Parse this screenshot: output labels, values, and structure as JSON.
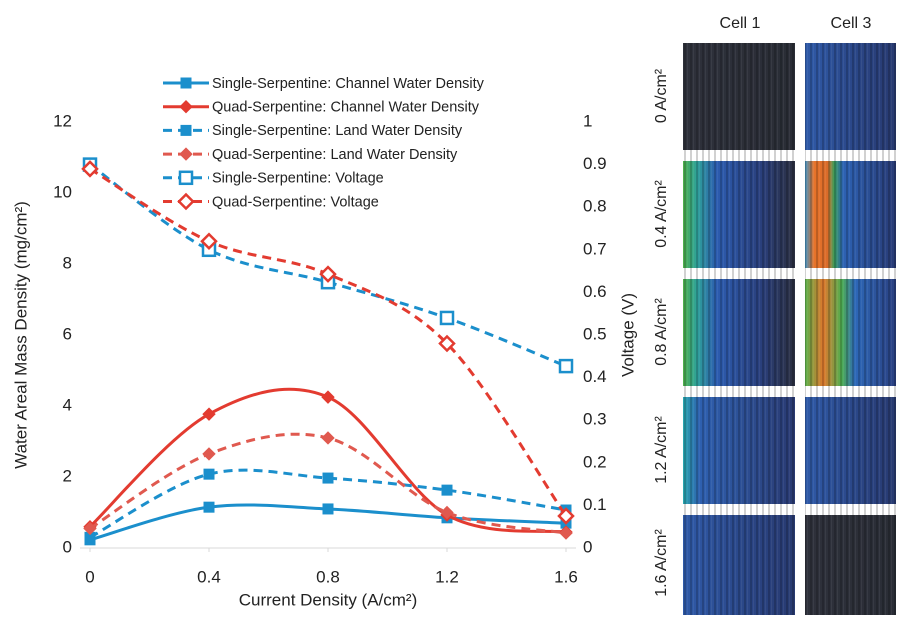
{
  "chart_data": {
    "type": "line",
    "xlabel": "Current Density (A/cm²)",
    "ylabel": "Water Areal Mass Density (mg/cm²)",
    "y2label": "Voltage (V)",
    "x": [
      0,
      0.4,
      0.8,
      1.2,
      1.6
    ],
    "xlim": [
      0,
      1.6
    ],
    "xticks": [
      0,
      0.4,
      0.8,
      1.2,
      1.6
    ],
    "ylim": [
      0,
      12
    ],
    "yticks": [
      0,
      2,
      4,
      6,
      8,
      10,
      12
    ],
    "y2lim": [
      0,
      1
    ],
    "y2ticks": [
      0,
      0.1,
      0.2,
      0.3,
      0.4,
      0.5,
      0.6,
      0.7,
      0.8,
      0.9,
      1
    ],
    "grid": false,
    "smooth": true,
    "series": [
      {
        "name": "Single-Serpentine: Channel Water Density",
        "color": "#1b8fcc",
        "style": "solid",
        "marker": "square",
        "values": [
          0.23,
          1.15,
          1.1,
          0.85,
          0.7
        ]
      },
      {
        "name": "Quad-Serpentine: Channel Water Density",
        "color": "#e33b30",
        "style": "solid",
        "marker": "diamond",
        "values": [
          0.6,
          3.77,
          4.25,
          0.93,
          0.45
        ]
      },
      {
        "name": "Single-Serpentine: Land Water Density",
        "color": "#1b8fcc",
        "style": "dashed",
        "marker": "square",
        "values": [
          0.3,
          2.08,
          1.97,
          1.63,
          1.07
        ]
      },
      {
        "name": "Quad-Serpentine: Land Water Density",
        "color": "#e0594f",
        "style": "dashed",
        "marker": "diamond",
        "values": [
          0.55,
          2.65,
          3.1,
          1.0,
          0.42
        ]
      },
      {
        "name": "Single-Serpentine: Voltage",
        "color": "#1b8fcc",
        "style": "dashed",
        "marker": "open-square",
        "axis": "y2",
        "values": [
          0.9,
          0.7,
          0.624,
          0.54,
          0.427
        ]
      },
      {
        "name": "Quad-Serpentine: Voltage",
        "color": "#e33b30",
        "style": "dashed",
        "marker": "open-diamond",
        "axis": "y2",
        "values": [
          0.89,
          0.72,
          0.643,
          0.48,
          0.075
        ]
      }
    ]
  },
  "panel": {
    "columns": [
      "Cell 1",
      "Cell 3"
    ],
    "rows": [
      "0 A/cm²",
      "0.4 A/cm²",
      "0.8 A/cm²",
      "1.2 A/cm²",
      "1.6 A/cm²"
    ]
  }
}
